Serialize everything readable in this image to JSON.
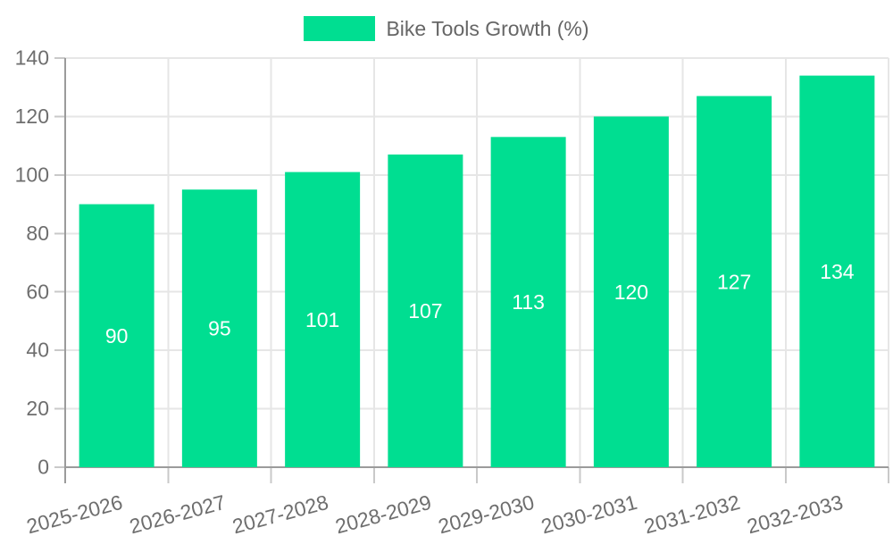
{
  "chart_data": {
    "type": "bar",
    "title": "",
    "series_name": "Bike Tools Growth (%)",
    "categories": [
      "2025-2026",
      "2026-2027",
      "2027-2028",
      "2028-2029",
      "2029-2030",
      "2030-2031",
      "2031-2032",
      "2032-2033"
    ],
    "values": [
      90,
      95,
      101,
      107,
      113,
      120,
      127,
      134
    ],
    "data_labels": [
      "90",
      "95",
      "101",
      "107",
      "113",
      "120",
      "127",
      "134"
    ],
    "xlabel": "",
    "ylabel": "",
    "ylim": [
      0,
      140
    ],
    "ytick_step": 20,
    "ytick_labels": [
      "0",
      "20",
      "40",
      "60",
      "80",
      "100",
      "120",
      "140"
    ],
    "grid": true,
    "legend_position": "top",
    "x_label_rotation_deg": -15,
    "colors": {
      "bar": "#00DE91",
      "grid": "#E6E6E6",
      "axis_line": "#9B9B9B",
      "tick": "#C9C9C9",
      "axis_text": "#6E6E6E",
      "legend_text": "#666666",
      "data_label_text": "#FFFFFF",
      "background": "#FFFFFF"
    }
  }
}
